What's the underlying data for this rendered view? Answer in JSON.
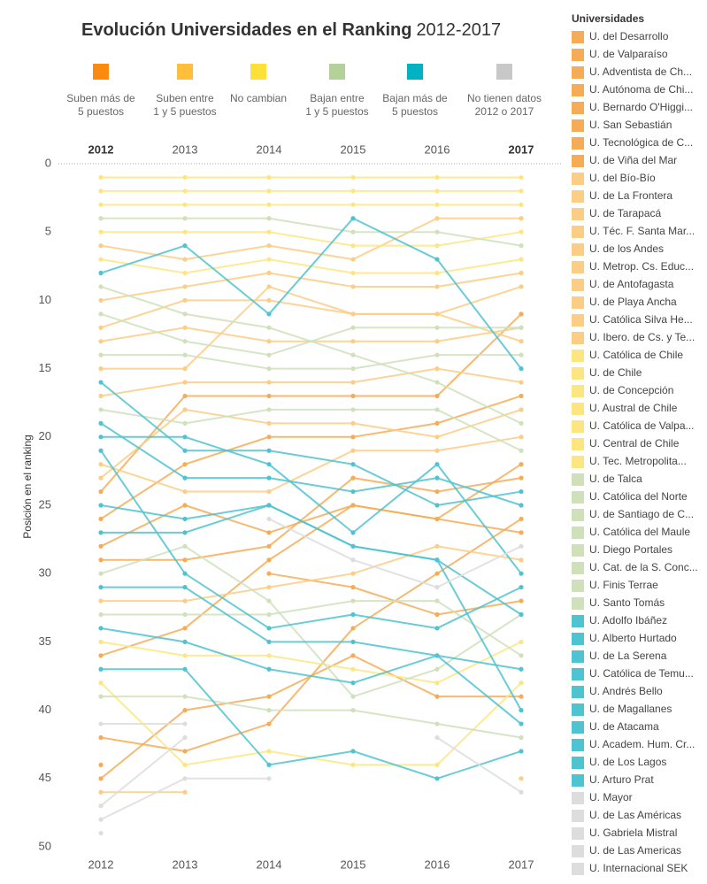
{
  "chart_data": {
    "type": "bump",
    "title": "Evolución Universidades en el Ranking",
    "subtitle": "2012-2017",
    "y_label": "Posición en el ranking",
    "legend_title": "Universidades",
    "categories": [
      "2012",
      "2013",
      "2014",
      "2015",
      "2016",
      "2017"
    ],
    "ylim": [
      0,
      50
    ],
    "yticks": [
      0,
      5,
      10,
      15,
      20,
      25,
      30,
      35,
      40,
      45,
      50
    ],
    "y_reversed": true,
    "groups": [
      {
        "label": "Suben más de\n5 puestos",
        "color": "#fb8a0e"
      },
      {
        "label": "Suben entre\n1 y 5 puestos",
        "color": "#ffbe3c"
      },
      {
        "label": "No cambian",
        "color": "#ffe03a"
      },
      {
        "label": "Bajan entre\n1 y 5 puestos",
        "color": "#b5d19a"
      },
      {
        "label": "Bajan más de\n5 puestos",
        "color": "#00b2c2"
      },
      {
        "label": "No tienen datos\n2012 o 2017",
        "color": "#c8c8c8"
      }
    ],
    "series": [
      {
        "name": "U. del Desarrollo",
        "color": "#f6ac56",
        "values": [
          24,
          17,
          17,
          17,
          17,
          11
        ]
      },
      {
        "name": "U. de Valparaíso",
        "color": "#f6ac56",
        "values": [
          26,
          22,
          20,
          20,
          19,
          17
        ]
      },
      {
        "name": "U. Adventista de Ch...",
        "color": "#f6ac56",
        "values": [
          42,
          43,
          41,
          34,
          30,
          26
        ]
      },
      {
        "name": "U. Autónoma de Chi...",
        "color": "#f6ac56",
        "values": [
          36,
          34,
          29,
          25,
          26,
          22
        ]
      },
      {
        "name": "U. Bernardo O'Higgi...",
        "color": "#f6ac56",
        "values": [
          29,
          29,
          28,
          23,
          24,
          23
        ]
      },
      {
        "name": "U. San Sebastián",
        "color": "#f6ac56",
        "values": [
          28,
          25,
          27,
          25,
          26,
          27
        ]
      },
      {
        "name": "U. Tecnológica de C...",
        "color": "#f6ac56",
        "values": [
          44,
          null,
          30,
          31,
          33,
          32
        ]
      },
      {
        "name": "U. de Viña del Mar",
        "color": "#f6ac56",
        "values": [
          45,
          40,
          39,
          36,
          39,
          39
        ]
      },
      {
        "name": "U. del Bío-Bío",
        "color": "#fbcd85",
        "values": [
          6,
          7,
          6,
          7,
          4,
          4
        ]
      },
      {
        "name": "U. de La Frontera",
        "color": "#fbcd85",
        "values": [
          10,
          9,
          8,
          9,
          9,
          8
        ]
      },
      {
        "name": "U. de Tarapacá",
        "color": "#fbcd85",
        "values": [
          12,
          10,
          10,
          11,
          11,
          9
        ]
      },
      {
        "name": "U. Téc. F. Santa Mar...",
        "color": "#fbcd85",
        "values": [
          13,
          12,
          13,
          13,
          13,
          12
        ]
      },
      {
        "name": "U. de los Andes",
        "color": "#fbcd85",
        "values": [
          17,
          16,
          16,
          16,
          15,
          16
        ]
      },
      {
        "name": "U. Metrop. Cs. Educ...",
        "color": "#fbcd85",
        "values": [
          22,
          24,
          24,
          21,
          21,
          20
        ]
      },
      {
        "name": "U. de Antofagasta",
        "color": "#fbcd85",
        "values": [
          23,
          18,
          19,
          19,
          20,
          18
        ]
      },
      {
        "name": "U. de Playa Ancha",
        "color": "#fbcd85",
        "values": [
          32,
          32,
          31,
          30,
          28,
          29
        ]
      },
      {
        "name": "U. Católica Silva He...",
        "color": "#fbcd85",
        "values": [
          15,
          15,
          9,
          11,
          11,
          13
        ]
      },
      {
        "name": "U. Ibero. de Cs. y Te...",
        "color": "#fbcd85",
        "values": [
          46,
          46,
          null,
          null,
          null,
          45
        ]
      },
      {
        "name": "U. Católica de Chile",
        "color": "#fde682",
        "values": [
          1,
          1,
          1,
          1,
          1,
          1
        ]
      },
      {
        "name": "U. de Chile",
        "color": "#fde682",
        "values": [
          2,
          2,
          2,
          2,
          2,
          2
        ]
      },
      {
        "name": "U. de Concepción",
        "color": "#fde682",
        "values": [
          3,
          3,
          3,
          3,
          3,
          3
        ]
      },
      {
        "name": "U. Austral de Chile",
        "color": "#fde682",
        "values": [
          5,
          5,
          5,
          6,
          6,
          5
        ]
      },
      {
        "name": "U. Católica de Valpa...",
        "color": "#fde682",
        "values": [
          7,
          8,
          7,
          8,
          8,
          7
        ]
      },
      {
        "name": "U. Central de Chile",
        "color": "#fde682",
        "values": [
          35,
          36,
          36,
          37,
          38,
          35
        ]
      },
      {
        "name": "U. Tec. Metropolita...",
        "color": "#fde682",
        "values": [
          38,
          44,
          43,
          44,
          44,
          38
        ]
      },
      {
        "name": "U. de Talca",
        "color": "#cfe0bb",
        "values": [
          4,
          4,
          4,
          5,
          5,
          6
        ]
      },
      {
        "name": "U. Católica del Norte",
        "color": "#cfe0bb",
        "values": [
          9,
          11,
          12,
          14,
          16,
          19
        ]
      },
      {
        "name": "U. de Santiago de C...",
        "color": "#cfe0bb",
        "values": [
          11,
          13,
          14,
          12,
          12,
          12
        ]
      },
      {
        "name": "U. Católica del Maule",
        "color": "#cfe0bb",
        "values": [
          14,
          14,
          15,
          15,
          14,
          14
        ]
      },
      {
        "name": "U. Diego Portales",
        "color": "#cfe0bb",
        "values": [
          18,
          19,
          18,
          18,
          18,
          21
        ]
      },
      {
        "name": "U. Cat. de la S. Conc...",
        "color": "#cfe0bb",
        "values": [
          30,
          28,
          32,
          39,
          37,
          33
        ]
      },
      {
        "name": "U. Finis Terrae",
        "color": "#cfe0bb",
        "values": [
          33,
          33,
          33,
          32,
          32,
          36
        ]
      },
      {
        "name": "U. Santo Tomás",
        "color": "#cfe0bb",
        "values": [
          39,
          39,
          40,
          40,
          41,
          42
        ]
      },
      {
        "name": "U. Adolfo Ibáñez",
        "color": "#4fc3cf",
        "values": [
          8,
          6,
          11,
          4,
          7,
          15
        ]
      },
      {
        "name": "U. Alberto Hurtado",
        "color": "#4fc3cf",
        "values": [
          16,
          21,
          21,
          22,
          25,
          24
        ]
      },
      {
        "name": "U. de La Serena",
        "color": "#4fc3cf",
        "values": [
          19,
          23,
          23,
          24,
          23,
          25
        ]
      },
      {
        "name": "U. Católica de Temu...",
        "color": "#4fc3cf",
        "values": [
          20,
          20,
          22,
          27,
          22,
          30
        ]
      },
      {
        "name": "U. Andrés Bello",
        "color": "#4fc3cf",
        "values": [
          21,
          30,
          34,
          33,
          34,
          31
        ]
      },
      {
        "name": "U. de Magallanes",
        "color": "#4fc3cf",
        "values": [
          25,
          26,
          25,
          28,
          29,
          40
        ]
      },
      {
        "name": "U. de Atacama",
        "color": "#4fc3cf",
        "values": [
          27,
          27,
          25,
          28,
          29,
          33
        ]
      },
      {
        "name": "U. Academ. Hum. Cr...",
        "color": "#4fc3cf",
        "values": [
          31,
          31,
          35,
          35,
          36,
          37
        ]
      },
      {
        "name": "U. de Los Lagos",
        "color": "#4fc3cf",
        "values": [
          34,
          35,
          37,
          38,
          36,
          41
        ]
      },
      {
        "name": "U. Arturo Prat",
        "color": "#4fc3cf",
        "values": [
          37,
          37,
          44,
          43,
          45,
          43
        ]
      },
      {
        "name": "U. Mayor",
        "color": "#dddddd",
        "values": [
          null,
          null,
          26,
          29,
          31,
          28
        ]
      },
      {
        "name": "U. de Las Américas",
        "color": "#dddddd",
        "values": [
          41,
          41,
          null,
          null,
          null,
          null
        ]
      },
      {
        "name": "U. Gabriela Mistral",
        "color": "#dddddd",
        "values": [
          47,
          42,
          null,
          null,
          null,
          null
        ]
      },
      {
        "name": "U. de Las Americas",
        "color": "#dddddd",
        "values": [
          48,
          45,
          45,
          null,
          null,
          null
        ]
      },
      {
        "name": "U. Internacional SEK",
        "color": "#dddddd",
        "values": [
          49,
          null,
          null,
          null,
          42,
          46
        ]
      }
    ]
  }
}
